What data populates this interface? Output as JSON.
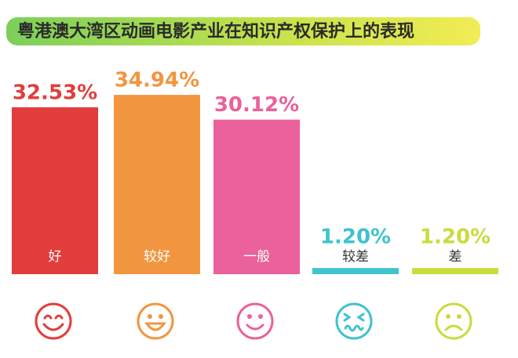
{
  "chart_data": {
    "type": "bar",
    "title": "粤港澳大湾区动画电影产业在知识产权保护上的表现",
    "categories": [
      "好",
      "较好",
      "一般",
      "较差",
      "差"
    ],
    "values": [
      32.53,
      34.94,
      30.12,
      1.2,
      1.2
    ],
    "value_labels": [
      "32.53%",
      "34.94%",
      "30.12%",
      "1.20%",
      "1.20%"
    ],
    "colors": [
      "#e23d3d",
      "#f2953f",
      "#ea619b",
      "#3fc3cf",
      "#c9dc3d"
    ]
  }
}
